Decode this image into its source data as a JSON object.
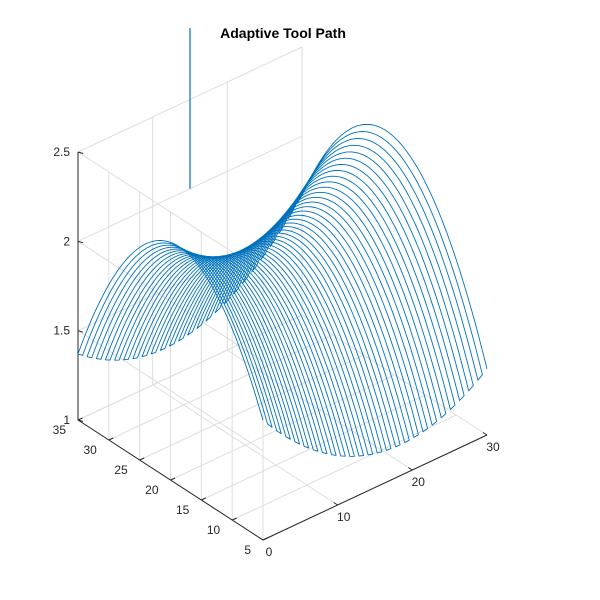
{
  "figure": {
    "background": "#ffffff"
  },
  "chart_data": {
    "type": "line",
    "projection": "3d",
    "title": "Adaptive Tool Path",
    "xlabel": "",
    "ylabel": "",
    "zlabel": "",
    "grid": true,
    "line_color": "#0072bd",
    "axis_color": "#262626",
    "grid_color": "#dedede",
    "xlim": [
      0,
      30
    ],
    "ylim": [
      5,
      35
    ],
    "zlim": [
      1,
      2.5
    ],
    "x_ticks": [
      0,
      10,
      20,
      30
    ],
    "y_ticks": [
      5,
      10,
      15,
      20,
      25,
      30,
      35
    ],
    "z_ticks": [
      1,
      1.5,
      2,
      2.5
    ],
    "x_tick_labels": [
      "0",
      "10",
      "20",
      "30"
    ],
    "y_tick_labels": [
      "5",
      "10",
      "15",
      "20",
      "25",
      "30",
      "35"
    ],
    "z_tick_labels": [
      "1",
      "1.5",
      "2",
      "2.5"
    ],
    "path": {
      "description": "zig-zag raster passes over a saddle surface",
      "surface": "z = 2 + 0.04*(x-15)^2/15 - 0.04*(y-20)^2/15 (approx.)",
      "passes": 50,
      "pass_axis": "x",
      "x_range": [
        0,
        30
      ],
      "y_range": [
        5,
        35
      ],
      "z_center": 2.0,
      "x_curvature": 0.6,
      "y_curvature": 0.9,
      "vertical_plunge": {
        "x": 15,
        "y": 35,
        "z_top": 2.9,
        "z_bottom": 2.0
      }
    }
  }
}
